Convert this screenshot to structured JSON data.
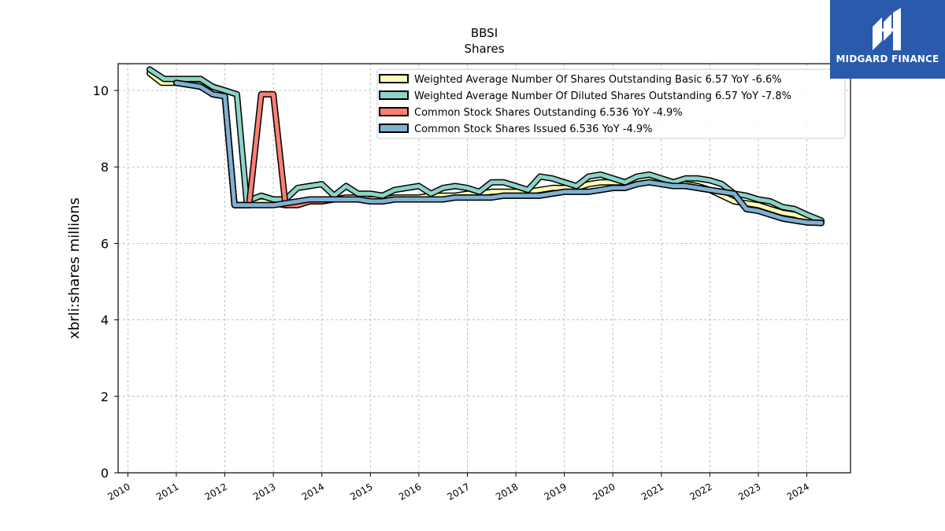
{
  "chart_data": {
    "type": "line",
    "title": "BBSI",
    "subtitle": "Shares",
    "ylabel": "xbrli:shares millions",
    "xlabel": "",
    "ylim": [
      0,
      10.7
    ],
    "xlim": [
      2009.8,
      2024.9
    ],
    "y_ticks": [
      "0",
      "2",
      "4",
      "6",
      "8",
      "10"
    ],
    "x_ticks": [
      "2010",
      "2011",
      "2012",
      "2013",
      "2014",
      "2015",
      "2016",
      "2017",
      "2018",
      "2019",
      "2020",
      "2021",
      "2022",
      "2023",
      "2024"
    ],
    "grid": true,
    "legend_position": "top-right",
    "series": [
      {
        "name": "Weighted Average Number Of Shares Outstanding Basic  6.57 YoY -6.6%",
        "color": "#ffffb3",
        "points": [
          [
            2010.45,
            10.45
          ],
          [
            2010.7,
            10.2
          ],
          [
            2011.0,
            10.2
          ],
          [
            2011.5,
            10.15
          ],
          [
            2011.75,
            9.9
          ],
          [
            2012.0,
            9.85
          ],
          [
            2012.2,
            7.0
          ],
          [
            2012.5,
            7.0
          ],
          [
            2012.75,
            7.1
          ],
          [
            2013.0,
            7.05
          ],
          [
            2013.25,
            7.0
          ],
          [
            2013.5,
            7.05
          ],
          [
            2013.75,
            7.1
          ],
          [
            2014.0,
            7.15
          ],
          [
            2014.25,
            7.15
          ],
          [
            2014.5,
            7.2
          ],
          [
            2014.75,
            7.2
          ],
          [
            2015.0,
            7.15
          ],
          [
            2015.25,
            7.15
          ],
          [
            2015.5,
            7.2
          ],
          [
            2015.75,
            7.2
          ],
          [
            2016.0,
            7.2
          ],
          [
            2016.25,
            7.25
          ],
          [
            2016.5,
            7.25
          ],
          [
            2016.75,
            7.25
          ],
          [
            2017.0,
            7.3
          ],
          [
            2017.25,
            7.3
          ],
          [
            2017.5,
            7.35
          ],
          [
            2017.75,
            7.35
          ],
          [
            2018.0,
            7.35
          ],
          [
            2018.25,
            7.35
          ],
          [
            2018.5,
            7.4
          ],
          [
            2018.75,
            7.45
          ],
          [
            2019.0,
            7.45
          ],
          [
            2019.25,
            7.45
          ],
          [
            2019.5,
            7.55
          ],
          [
            2019.75,
            7.6
          ],
          [
            2020.0,
            7.6
          ],
          [
            2020.25,
            7.6
          ],
          [
            2020.5,
            7.65
          ],
          [
            2020.75,
            7.7
          ],
          [
            2021.0,
            7.65
          ],
          [
            2021.25,
            7.6
          ],
          [
            2021.5,
            7.55
          ],
          [
            2021.75,
            7.5
          ],
          [
            2022.0,
            7.4
          ],
          [
            2022.25,
            7.25
          ],
          [
            2022.5,
            7.1
          ],
          [
            2022.75,
            7.05
          ],
          [
            2023.0,
            7.0
          ],
          [
            2023.25,
            6.9
          ],
          [
            2023.5,
            6.8
          ],
          [
            2023.75,
            6.75
          ],
          [
            2024.0,
            6.65
          ],
          [
            2024.3,
            6.57
          ]
        ]
      },
      {
        "name": "Weighted Average Number Of Diluted Shares Outstanding  6.57 YoY -7.8%",
        "color": "#8dd3c7",
        "points": [
          [
            2010.45,
            10.55
          ],
          [
            2010.75,
            10.3
          ],
          [
            2011.0,
            10.3
          ],
          [
            2011.25,
            10.3
          ],
          [
            2011.5,
            10.3
          ],
          [
            2011.75,
            10.1
          ],
          [
            2012.0,
            10.0
          ],
          [
            2012.25,
            9.9
          ],
          [
            2012.45,
            7.1
          ],
          [
            2012.75,
            7.25
          ],
          [
            2013.0,
            7.15
          ],
          [
            2013.25,
            7.15
          ],
          [
            2013.5,
            7.45
          ],
          [
            2013.75,
            7.5
          ],
          [
            2014.0,
            7.55
          ],
          [
            2014.25,
            7.25
          ],
          [
            2014.5,
            7.5
          ],
          [
            2014.75,
            7.3
          ],
          [
            2015.0,
            7.3
          ],
          [
            2015.25,
            7.25
          ],
          [
            2015.5,
            7.4
          ],
          [
            2015.75,
            7.45
          ],
          [
            2016.0,
            7.5
          ],
          [
            2016.25,
            7.3
          ],
          [
            2016.5,
            7.45
          ],
          [
            2016.75,
            7.5
          ],
          [
            2017.0,
            7.45
          ],
          [
            2017.25,
            7.35
          ],
          [
            2017.5,
            7.6
          ],
          [
            2017.75,
            7.6
          ],
          [
            2018.0,
            7.5
          ],
          [
            2018.25,
            7.4
          ],
          [
            2018.5,
            7.75
          ],
          [
            2018.75,
            7.7
          ],
          [
            2019.0,
            7.6
          ],
          [
            2019.25,
            7.5
          ],
          [
            2019.5,
            7.75
          ],
          [
            2019.75,
            7.8
          ],
          [
            2020.0,
            7.7
          ],
          [
            2020.25,
            7.6
          ],
          [
            2020.5,
            7.75
          ],
          [
            2020.75,
            7.8
          ],
          [
            2021.0,
            7.7
          ],
          [
            2021.25,
            7.6
          ],
          [
            2021.5,
            7.7
          ],
          [
            2021.75,
            7.7
          ],
          [
            2022.0,
            7.65
          ],
          [
            2022.25,
            7.55
          ],
          [
            2022.5,
            7.3
          ],
          [
            2022.75,
            7.25
          ],
          [
            2023.0,
            7.15
          ],
          [
            2023.25,
            7.1
          ],
          [
            2023.5,
            6.95
          ],
          [
            2023.75,
            6.9
          ],
          [
            2024.0,
            6.75
          ],
          [
            2024.3,
            6.6
          ]
        ]
      },
      {
        "name": "Common Stock Shares Outstanding  6.536 YoY -4.9%",
        "color": "#fb8072",
        "points": [
          [
            2011.0,
            10.2
          ],
          [
            2011.5,
            10.1
          ],
          [
            2011.75,
            9.9
          ],
          [
            2012.0,
            9.85
          ],
          [
            2012.2,
            7.0
          ],
          [
            2012.5,
            7.0
          ],
          [
            2012.75,
            9.9
          ],
          [
            2013.0,
            9.9
          ],
          [
            2013.25,
            7.0
          ],
          [
            2013.5,
            7.0
          ],
          [
            2013.75,
            7.1
          ],
          [
            2014.0,
            7.1
          ],
          [
            2014.25,
            7.15
          ],
          [
            2014.5,
            7.15
          ],
          [
            2014.75,
            7.15
          ],
          [
            2015.0,
            7.1
          ],
          [
            2015.25,
            7.1
          ],
          [
            2015.5,
            7.15
          ],
          [
            2015.75,
            7.15
          ],
          [
            2016.0,
            7.15
          ],
          [
            2016.25,
            7.15
          ],
          [
            2016.5,
            7.15
          ],
          [
            2016.75,
            7.2
          ],
          [
            2017.0,
            7.2
          ],
          [
            2017.25,
            7.2
          ],
          [
            2017.5,
            7.2
          ],
          [
            2017.75,
            7.25
          ],
          [
            2018.0,
            7.25
          ],
          [
            2018.25,
            7.25
          ],
          [
            2018.5,
            7.25
          ],
          [
            2018.75,
            7.3
          ],
          [
            2019.0,
            7.35
          ],
          [
            2019.25,
            7.35
          ],
          [
            2019.5,
            7.35
          ],
          [
            2019.75,
            7.4
          ],
          [
            2020.0,
            7.45
          ],
          [
            2020.25,
            7.45
          ],
          [
            2020.5,
            7.55
          ],
          [
            2020.75,
            7.6
          ],
          [
            2021.0,
            7.55
          ],
          [
            2021.25,
            7.5
          ],
          [
            2021.5,
            7.5
          ],
          [
            2021.75,
            7.45
          ],
          [
            2022.0,
            7.4
          ],
          [
            2022.25,
            7.35
          ],
          [
            2022.5,
            7.3
          ],
          [
            2022.75,
            6.9
          ],
          [
            2023.0,
            6.85
          ],
          [
            2023.25,
            6.75
          ],
          [
            2023.5,
            6.65
          ],
          [
            2023.75,
            6.6
          ],
          [
            2024.0,
            6.55
          ],
          [
            2024.3,
            6.536
          ]
        ]
      },
      {
        "name": "Common Stock Shares Issued  6.536 YoY -4.9%",
        "color": "#80b1d3",
        "points": [
          [
            2011.0,
            10.2
          ],
          [
            2011.5,
            10.1
          ],
          [
            2011.75,
            9.9
          ],
          [
            2012.0,
            9.85
          ],
          [
            2012.2,
            7.0
          ],
          [
            2012.5,
            7.0
          ],
          [
            2012.75,
            7.0
          ],
          [
            2013.0,
            7.0
          ],
          [
            2013.25,
            7.05
          ],
          [
            2013.5,
            7.1
          ],
          [
            2013.75,
            7.15
          ],
          [
            2014.0,
            7.15
          ],
          [
            2014.25,
            7.15
          ],
          [
            2014.5,
            7.15
          ],
          [
            2014.75,
            7.15
          ],
          [
            2015.0,
            7.1
          ],
          [
            2015.25,
            7.1
          ],
          [
            2015.5,
            7.15
          ],
          [
            2015.75,
            7.15
          ],
          [
            2016.0,
            7.15
          ],
          [
            2016.25,
            7.15
          ],
          [
            2016.5,
            7.15
          ],
          [
            2016.75,
            7.2
          ],
          [
            2017.0,
            7.2
          ],
          [
            2017.25,
            7.2
          ],
          [
            2017.5,
            7.2
          ],
          [
            2017.75,
            7.25
          ],
          [
            2018.0,
            7.25
          ],
          [
            2018.25,
            7.25
          ],
          [
            2018.5,
            7.25
          ],
          [
            2018.75,
            7.3
          ],
          [
            2019.0,
            7.35
          ],
          [
            2019.25,
            7.35
          ],
          [
            2019.5,
            7.35
          ],
          [
            2019.75,
            7.4
          ],
          [
            2020.0,
            7.45
          ],
          [
            2020.25,
            7.45
          ],
          [
            2020.5,
            7.55
          ],
          [
            2020.75,
            7.6
          ],
          [
            2021.0,
            7.55
          ],
          [
            2021.25,
            7.5
          ],
          [
            2021.5,
            7.5
          ],
          [
            2021.75,
            7.45
          ],
          [
            2022.0,
            7.4
          ],
          [
            2022.25,
            7.35
          ],
          [
            2022.5,
            7.3
          ],
          [
            2022.75,
            6.9
          ],
          [
            2023.0,
            6.85
          ],
          [
            2023.25,
            6.75
          ],
          [
            2023.5,
            6.65
          ],
          [
            2023.75,
            6.6
          ],
          [
            2024.0,
            6.55
          ],
          [
            2024.3,
            6.536
          ]
        ]
      }
    ]
  },
  "logo": {
    "text": "MIDGARD FINANCE",
    "background": "#2a5aab"
  }
}
